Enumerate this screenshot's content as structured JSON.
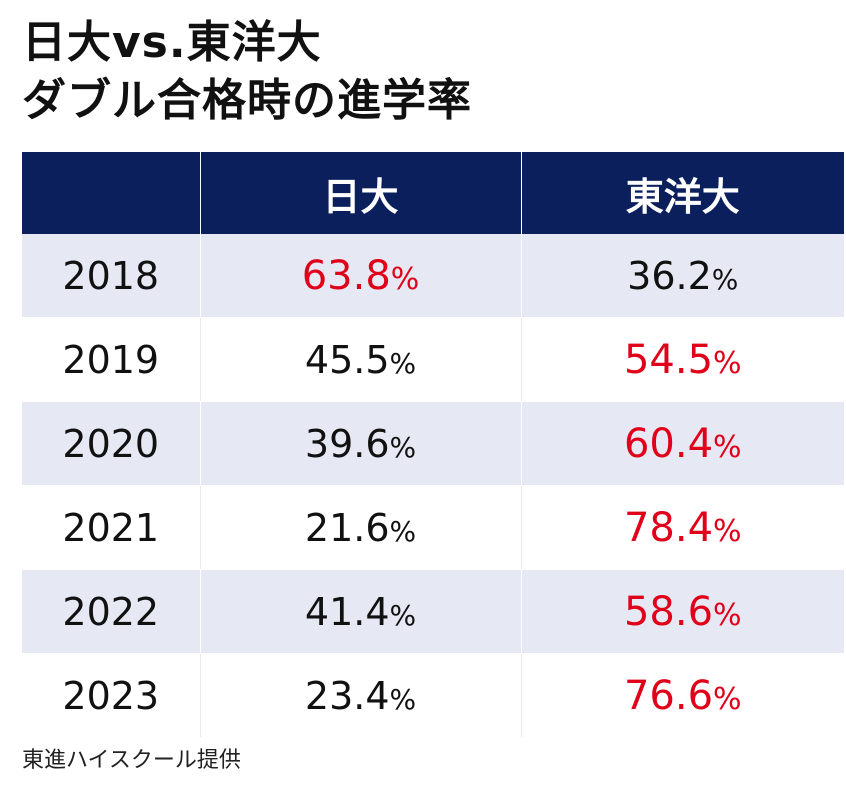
{
  "title_lines": [
    "日大vs.東洋大",
    "ダブル合格時の進学率"
  ],
  "source": "東進ハイスクール提供",
  "chart_data": {
    "type": "table",
    "columns": [
      "",
      "日大",
      "東洋大"
    ],
    "unit": "%",
    "rows": [
      {
        "year": "2018",
        "nichidai": "63.8",
        "toyo": "36.2",
        "higher": "nichidai"
      },
      {
        "year": "2019",
        "nichidai": "45.5",
        "toyo": "54.5",
        "higher": "toyo"
      },
      {
        "year": "2020",
        "nichidai": "39.6",
        "toyo": "60.4",
        "higher": "toyo"
      },
      {
        "year": "2021",
        "nichidai": "21.6",
        "toyo": "78.4",
        "higher": "toyo"
      },
      {
        "year": "2022",
        "nichidai": "41.4",
        "toyo": "58.6",
        "higher": "toyo"
      },
      {
        "year": "2023",
        "nichidai": "23.4",
        "toyo": "76.6",
        "higher": "toyo"
      }
    ]
  },
  "colors": {
    "header_bg": "#0b1f5c",
    "highlight_text": "#e1001a",
    "stripe_bg": "#e6e9f3"
  }
}
